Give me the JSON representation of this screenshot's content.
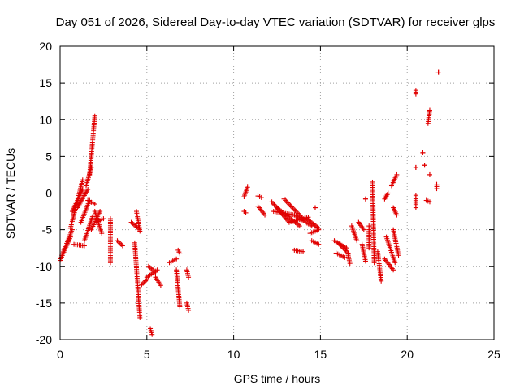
{
  "chart_data": {
    "type": "scatter",
    "title": "Day 051 of 2026, Sidereal Day-to-day VTEC variation (SDTVAR) for receiver glps",
    "xlabel": "GPS time / hours",
    "ylabel": "SDTVAR / TECUs",
    "xlim": [
      0,
      25
    ],
    "ylim": [
      -20,
      20
    ],
    "xticks": [
      "0",
      "5",
      "10",
      "15",
      "20",
      "25"
    ],
    "yticks": [
      "-20",
      "-15",
      "-10",
      "-5",
      "0",
      "5",
      "10",
      "15",
      "20"
    ],
    "grid": true,
    "marker": "+",
    "color": "#e00000",
    "series": [
      {
        "name": "SDTVAR",
        "segments": [
          {
            "x0": 0.0,
            "y0": -9.2,
            "x1": 0.6,
            "y1": -6.0
          },
          {
            "x0": 0.1,
            "y0": -8.5,
            "x1": 0.7,
            "y1": -5.0
          },
          {
            "x0": 0.6,
            "y0": -4.8,
            "x1": 1.3,
            "y1": 1.8
          },
          {
            "x0": 0.7,
            "y0": -2.5,
            "x1": 1.3,
            "y1": 0.5
          },
          {
            "x0": 0.8,
            "y0": -7.0,
            "x1": 1.4,
            "y1": -7.2
          },
          {
            "x0": 1.0,
            "y0": -2.0,
            "x1": 1.6,
            "y1": 0.5
          },
          {
            "x0": 1.2,
            "y0": -4.0,
            "x1": 1.7,
            "y1": -1.0
          },
          {
            "x0": 1.4,
            "y0": -6.5,
            "x1": 1.9,
            "y1": -3.0
          },
          {
            "x0": 1.5,
            "y0": 1.0,
            "x1": 1.8,
            "y1": 3.5
          },
          {
            "x0": 1.7,
            "y0": 2.5,
            "x1": 2.0,
            "y1": 10.5
          },
          {
            "x0": 1.6,
            "y0": -1.0,
            "x1": 2.0,
            "y1": -1.5
          },
          {
            "x0": 1.8,
            "y0": -5.0,
            "x1": 2.3,
            "y1": -2.5
          },
          {
            "x0": 2.0,
            "y0": -2.5,
            "x1": 2.4,
            "y1": -5.5
          },
          {
            "x0": 2.1,
            "y0": -4.0,
            "x1": 2.5,
            "y1": -3.5
          },
          {
            "x0": 2.9,
            "y0": -3.5,
            "x1": 2.9,
            "y1": -9.5
          },
          {
            "x0": 3.3,
            "y0": -6.5,
            "x1": 3.6,
            "y1": -7.2
          },
          {
            "x0": 4.1,
            "y0": -4.0,
            "x1": 4.5,
            "y1": -4.8
          },
          {
            "x0": 4.3,
            "y0": -6.8,
            "x1": 4.6,
            "y1": -17.0
          },
          {
            "x0": 4.4,
            "y0": -2.5,
            "x1": 4.6,
            "y1": -5.2
          },
          {
            "x0": 4.7,
            "y0": -12.5,
            "x1": 5.0,
            "y1": -11.8
          },
          {
            "x0": 5.0,
            "y0": -11.5,
            "x1": 5.6,
            "y1": -10.5
          },
          {
            "x0": 5.1,
            "y0": -10.0,
            "x1": 5.5,
            "y1": -10.8
          },
          {
            "x0": 5.2,
            "y0": -18.5,
            "x1": 5.3,
            "y1": -19.3
          },
          {
            "x0": 5.5,
            "y0": -11.5,
            "x1": 5.8,
            "y1": -12.6
          },
          {
            "x0": 6.3,
            "y0": -9.5,
            "x1": 6.7,
            "y1": -9.0
          },
          {
            "x0": 6.8,
            "y0": -7.8,
            "x1": 6.9,
            "y1": -8.3
          },
          {
            "x0": 6.7,
            "y0": -10.5,
            "x1": 6.9,
            "y1": -15.5
          },
          {
            "x0": 7.3,
            "y0": -10.5,
            "x1": 7.4,
            "y1": -11.5
          },
          {
            "x0": 7.3,
            "y0": -15.0,
            "x1": 7.4,
            "y1": -16.0
          },
          {
            "x0": 10.6,
            "y0": -0.5,
            "x1": 10.8,
            "y1": 0.8
          },
          {
            "x0": 10.6,
            "y0": -2.5,
            "x1": 10.7,
            "y1": -2.7
          },
          {
            "x0": 11.4,
            "y0": -0.4,
            "x1": 11.6,
            "y1": -0.6
          },
          {
            "x0": 11.4,
            "y0": -1.8,
            "x1": 11.8,
            "y1": -3.0
          },
          {
            "x0": 12.2,
            "y0": -1.2,
            "x1": 13.2,
            "y1": -4.0
          },
          {
            "x0": 12.3,
            "y0": -2.5,
            "x1": 13.5,
            "y1": -3.0
          },
          {
            "x0": 12.5,
            "y0": -2.0,
            "x1": 13.8,
            "y1": -4.5
          },
          {
            "x0": 12.9,
            "y0": -0.8,
            "x1": 14.0,
            "y1": -3.5
          },
          {
            "x0": 13.2,
            "y0": -4.0,
            "x1": 14.3,
            "y1": -3.3
          },
          {
            "x0": 13.5,
            "y0": -3.0,
            "x1": 14.5,
            "y1": -4.5
          },
          {
            "x0": 14.2,
            "y0": -3.5,
            "x1": 14.9,
            "y1": -4.8
          },
          {
            "x0": 14.4,
            "y0": -5.5,
            "x1": 14.9,
            "y1": -5.0
          },
          {
            "x0": 14.5,
            "y0": -6.5,
            "x1": 14.9,
            "y1": -7.0
          },
          {
            "x0": 13.5,
            "y0": -7.8,
            "x1": 14.0,
            "y1": -8.0
          },
          {
            "x0": 14.7,
            "y0": -2.0,
            "x1": 14.7,
            "y1": -2.0
          },
          {
            "x0": 15.8,
            "y0": -6.5,
            "x1": 16.5,
            "y1": -7.5
          },
          {
            "x0": 16.1,
            "y0": -7.0,
            "x1": 16.6,
            "y1": -8.2
          },
          {
            "x0": 15.9,
            "y0": -8.2,
            "x1": 16.4,
            "y1": -8.8
          },
          {
            "x0": 16.6,
            "y0": -8.5,
            "x1": 16.7,
            "y1": -9.6
          },
          {
            "x0": 16.8,
            "y0": -4.5,
            "x1": 17.1,
            "y1": -6.5
          },
          {
            "x0": 17.2,
            "y0": -4.0,
            "x1": 17.5,
            "y1": -5.0
          },
          {
            "x0": 17.4,
            "y0": -7.0,
            "x1": 17.6,
            "y1": -9.3
          },
          {
            "x0": 17.6,
            "y0": -0.8,
            "x1": 17.6,
            "y1": -0.8
          },
          {
            "x0": 17.8,
            "y0": -4.5,
            "x1": 17.8,
            "y1": -7.5
          },
          {
            "x0": 18.0,
            "y0": 1.5,
            "x1": 18.1,
            "y1": -9.5
          },
          {
            "x0": 18.3,
            "y0": -8.0,
            "x1": 18.5,
            "y1": -12.0
          },
          {
            "x0": 18.7,
            "y0": -0.8,
            "x1": 18.9,
            "y1": 0.0
          },
          {
            "x0": 18.7,
            "y0": -9.0,
            "x1": 19.2,
            "y1": -10.5
          },
          {
            "x0": 18.8,
            "y0": -6.0,
            "x1": 19.3,
            "y1": -9.5
          },
          {
            "x0": 19.1,
            "y0": 1.0,
            "x1": 19.4,
            "y1": 2.5
          },
          {
            "x0": 19.2,
            "y0": -2.0,
            "x1": 19.4,
            "y1": -3.0
          },
          {
            "x0": 19.2,
            "y0": -5.0,
            "x1": 19.5,
            "y1": -8.5
          },
          {
            "x0": 20.5,
            "y0": 14.0,
            "x1": 20.5,
            "y1": 13.5
          },
          {
            "x0": 20.5,
            "y0": 3.5,
            "x1": 20.5,
            "y1": 3.5
          },
          {
            "x0": 20.5,
            "y0": -0.3,
            "x1": 20.5,
            "y1": -2.0
          },
          {
            "x0": 20.9,
            "y0": 5.5,
            "x1": 20.9,
            "y1": 5.5
          },
          {
            "x0": 21.0,
            "y0": 3.8,
            "x1": 21.0,
            "y1": 3.8
          },
          {
            "x0": 21.1,
            "y0": -1.0,
            "x1": 21.3,
            "y1": -1.2
          },
          {
            "x0": 21.2,
            "y0": 9.5,
            "x1": 21.3,
            "y1": 11.3
          },
          {
            "x0": 21.3,
            "y0": 2.5,
            "x1": 21.3,
            "y1": 2.5
          },
          {
            "x0": 21.7,
            "y0": 1.2,
            "x1": 21.7,
            "y1": 0.6
          },
          {
            "x0": 21.8,
            "y0": 16.5,
            "x1": 21.8,
            "y1": 16.5
          }
        ]
      }
    ]
  }
}
